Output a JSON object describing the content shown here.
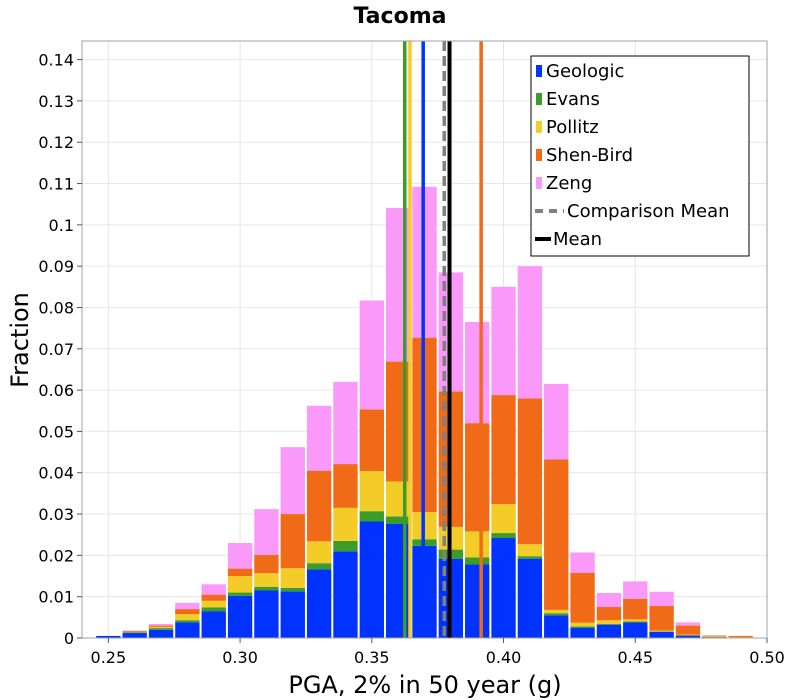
{
  "chart_data": {
    "type": "bar",
    "stacked": true,
    "title": "Tacoma",
    "xlabel": "PGA, 2% in 50 year (g)",
    "ylabel": "Fraction",
    "xlim": [
      0.24,
      0.5
    ],
    "ylim": [
      0,
      0.1445
    ],
    "xticks": [
      "0.25",
      "0.30",
      "0.35",
      "0.40",
      "0.45",
      "0.50"
    ],
    "yticks": [
      "0",
      "0.01",
      "0.02",
      "0.03",
      "0.04",
      "0.05",
      "0.06",
      "0.07",
      "0.08",
      "0.09",
      "0.1",
      "0.11",
      "0.12",
      "0.13",
      "0.14"
    ],
    "bin_width": 0.01,
    "bin_centers": [
      0.25,
      0.26,
      0.27,
      0.28,
      0.29,
      0.3,
      0.31,
      0.32,
      0.33,
      0.34,
      0.35,
      0.36,
      0.37,
      0.38,
      0.39,
      0.4,
      0.41,
      0.42,
      0.43,
      0.44,
      0.45,
      0.46,
      0.47,
      0.48,
      0.49
    ],
    "series": [
      {
        "name": "Geologic",
        "color": "#0033ff",
        "values": [
          0.0005,
          0.0012,
          0.002,
          0.0038,
          0.0065,
          0.0102,
          0.0115,
          0.0113,
          0.0166,
          0.021,
          0.0282,
          0.0276,
          0.0223,
          0.0192,
          0.0178,
          0.0242,
          0.0192,
          0.0055,
          0.0025,
          0.0032,
          0.0038,
          0.0015,
          0.0006,
          0.0002,
          0.0001
        ]
      },
      {
        "name": "Evans",
        "color": "#3c9c29",
        "values": [
          0.0,
          0.0002,
          0.0004,
          0.0005,
          0.0009,
          0.0008,
          0.0009,
          0.0008,
          0.0015,
          0.0025,
          0.0025,
          0.0018,
          0.0016,
          0.0022,
          0.0017,
          0.0012,
          0.0006,
          0.0005,
          0.0003,
          0.0002,
          0.0002,
          0.0001,
          0.0,
          0.0,
          0.0
        ]
      },
      {
        "name": "Pollitz",
        "color": "#f4cc27",
        "values": [
          0.0,
          0.0001,
          0.0003,
          0.0015,
          0.0016,
          0.004,
          0.0033,
          0.0048,
          0.0053,
          0.008,
          0.0097,
          0.0085,
          0.0066,
          0.0055,
          0.0063,
          0.007,
          0.0029,
          0.0008,
          0.0009,
          0.0009,
          0.0005,
          0.0002,
          0.0002,
          0.0002,
          0.0001
        ]
      },
      {
        "name": "Shen-Bird",
        "color": "#f06a17",
        "values": [
          0.0,
          0.0002,
          0.0003,
          0.0012,
          0.0015,
          0.0018,
          0.0044,
          0.0131,
          0.0171,
          0.0106,
          0.0149,
          0.029,
          0.0422,
          0.0328,
          0.0262,
          0.0264,
          0.0353,
          0.0364,
          0.0121,
          0.0032,
          0.005,
          0.006,
          0.0022,
          0.0002,
          0.0003
        ]
      },
      {
        "name": "Zeng",
        "color": "#fb99fb",
        "values": [
          0.0,
          0.0001,
          0.0004,
          0.0015,
          0.0025,
          0.0062,
          0.0111,
          0.0162,
          0.0157,
          0.0199,
          0.0264,
          0.0372,
          0.0365,
          0.0288,
          0.0245,
          0.0262,
          0.032,
          0.0183,
          0.0049,
          0.0034,
          0.0042,
          0.0034,
          0.0008,
          0.0,
          0.0
        ]
      }
    ],
    "vertical_lines": [
      {
        "name": "Evans",
        "x": 0.3625,
        "color": "#3c9c29",
        "style": "solid"
      },
      {
        "name": "Pollitz",
        "x": 0.3645,
        "color": "#f4cc27",
        "style": "solid"
      },
      {
        "name": "Geologic",
        "x": 0.3695,
        "color": "#0033ff",
        "style": "solid"
      },
      {
        "name": "Shen-Bird",
        "x": 0.3915,
        "color": "#f06a17",
        "style": "solid"
      },
      {
        "name": "Comparison Mean",
        "x": 0.3775,
        "color": "#808080",
        "style": "dashed"
      },
      {
        "name": "Mean",
        "x": 0.3795,
        "color": "#000000",
        "style": "solid"
      }
    ],
    "legend": {
      "placement": "top-right",
      "entries": [
        {
          "label": "Geologic",
          "color": "#0033ff",
          "kind": "bar"
        },
        {
          "label": "Evans",
          "color": "#3c9c29",
          "kind": "bar"
        },
        {
          "label": "Pollitz",
          "color": "#f4cc27",
          "kind": "bar"
        },
        {
          "label": "Shen-Bird",
          "color": "#f06a17",
          "kind": "bar"
        },
        {
          "label": "Zeng",
          "color": "#fb99fb",
          "kind": "bar"
        },
        {
          "label": "Comparison Mean",
          "color": "#808080",
          "kind": "dashed-line"
        },
        {
          "label": "Mean",
          "color": "#000000",
          "kind": "line"
        }
      ]
    },
    "grid": true
  }
}
